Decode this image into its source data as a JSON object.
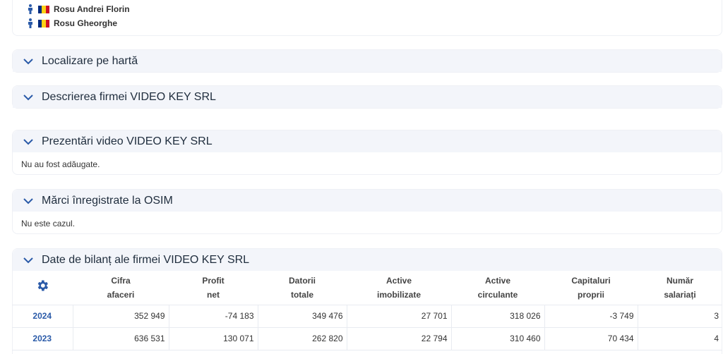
{
  "persons": [
    {
      "name": "Rosu Andrei Florin"
    },
    {
      "name": "Rosu Gheorghe"
    }
  ],
  "flag_colors": [
    "#002b7f",
    "#fcd116",
    "#ce1126"
  ],
  "accent": "#2a5aa8",
  "sections": {
    "map": {
      "title": "Localizare pe hartă"
    },
    "description": {
      "title": "Descrierea firmei VIDEO KEY SRL"
    },
    "videos": {
      "title": "Prezentări video VIDEO KEY SRL",
      "body": "Nu au fost adăugate."
    },
    "trademarks": {
      "title": "Mărci înregistrate la OSIM",
      "body": "Nu este cazul."
    },
    "balance": {
      "title": "Date de bilanț ale firmei VIDEO KEY SRL"
    }
  },
  "balance_table": {
    "settings_icon": "gear-icon",
    "headers": [
      {
        "l1": "Cifra",
        "l2": "afaceri"
      },
      {
        "l1": "Profit",
        "l2": "net"
      },
      {
        "l1": "Datorii",
        "l2": "totale"
      },
      {
        "l1": "Active",
        "l2": "imobilizate"
      },
      {
        "l1": "Active",
        "l2": "circulante"
      },
      {
        "l1": "Capitaluri",
        "l2": "proprii"
      },
      {
        "l1": "Număr",
        "l2": "salariați"
      }
    ],
    "rows": [
      {
        "year": "2024",
        "cells": [
          "352 949",
          "-74 183",
          "349 476",
          "27 701",
          "318 026",
          "-3 749",
          "3"
        ]
      },
      {
        "year": "2023",
        "cells": [
          "636 531",
          "130 071",
          "262 820",
          "22 794",
          "310 460",
          "70 434",
          "4"
        ]
      }
    ]
  }
}
